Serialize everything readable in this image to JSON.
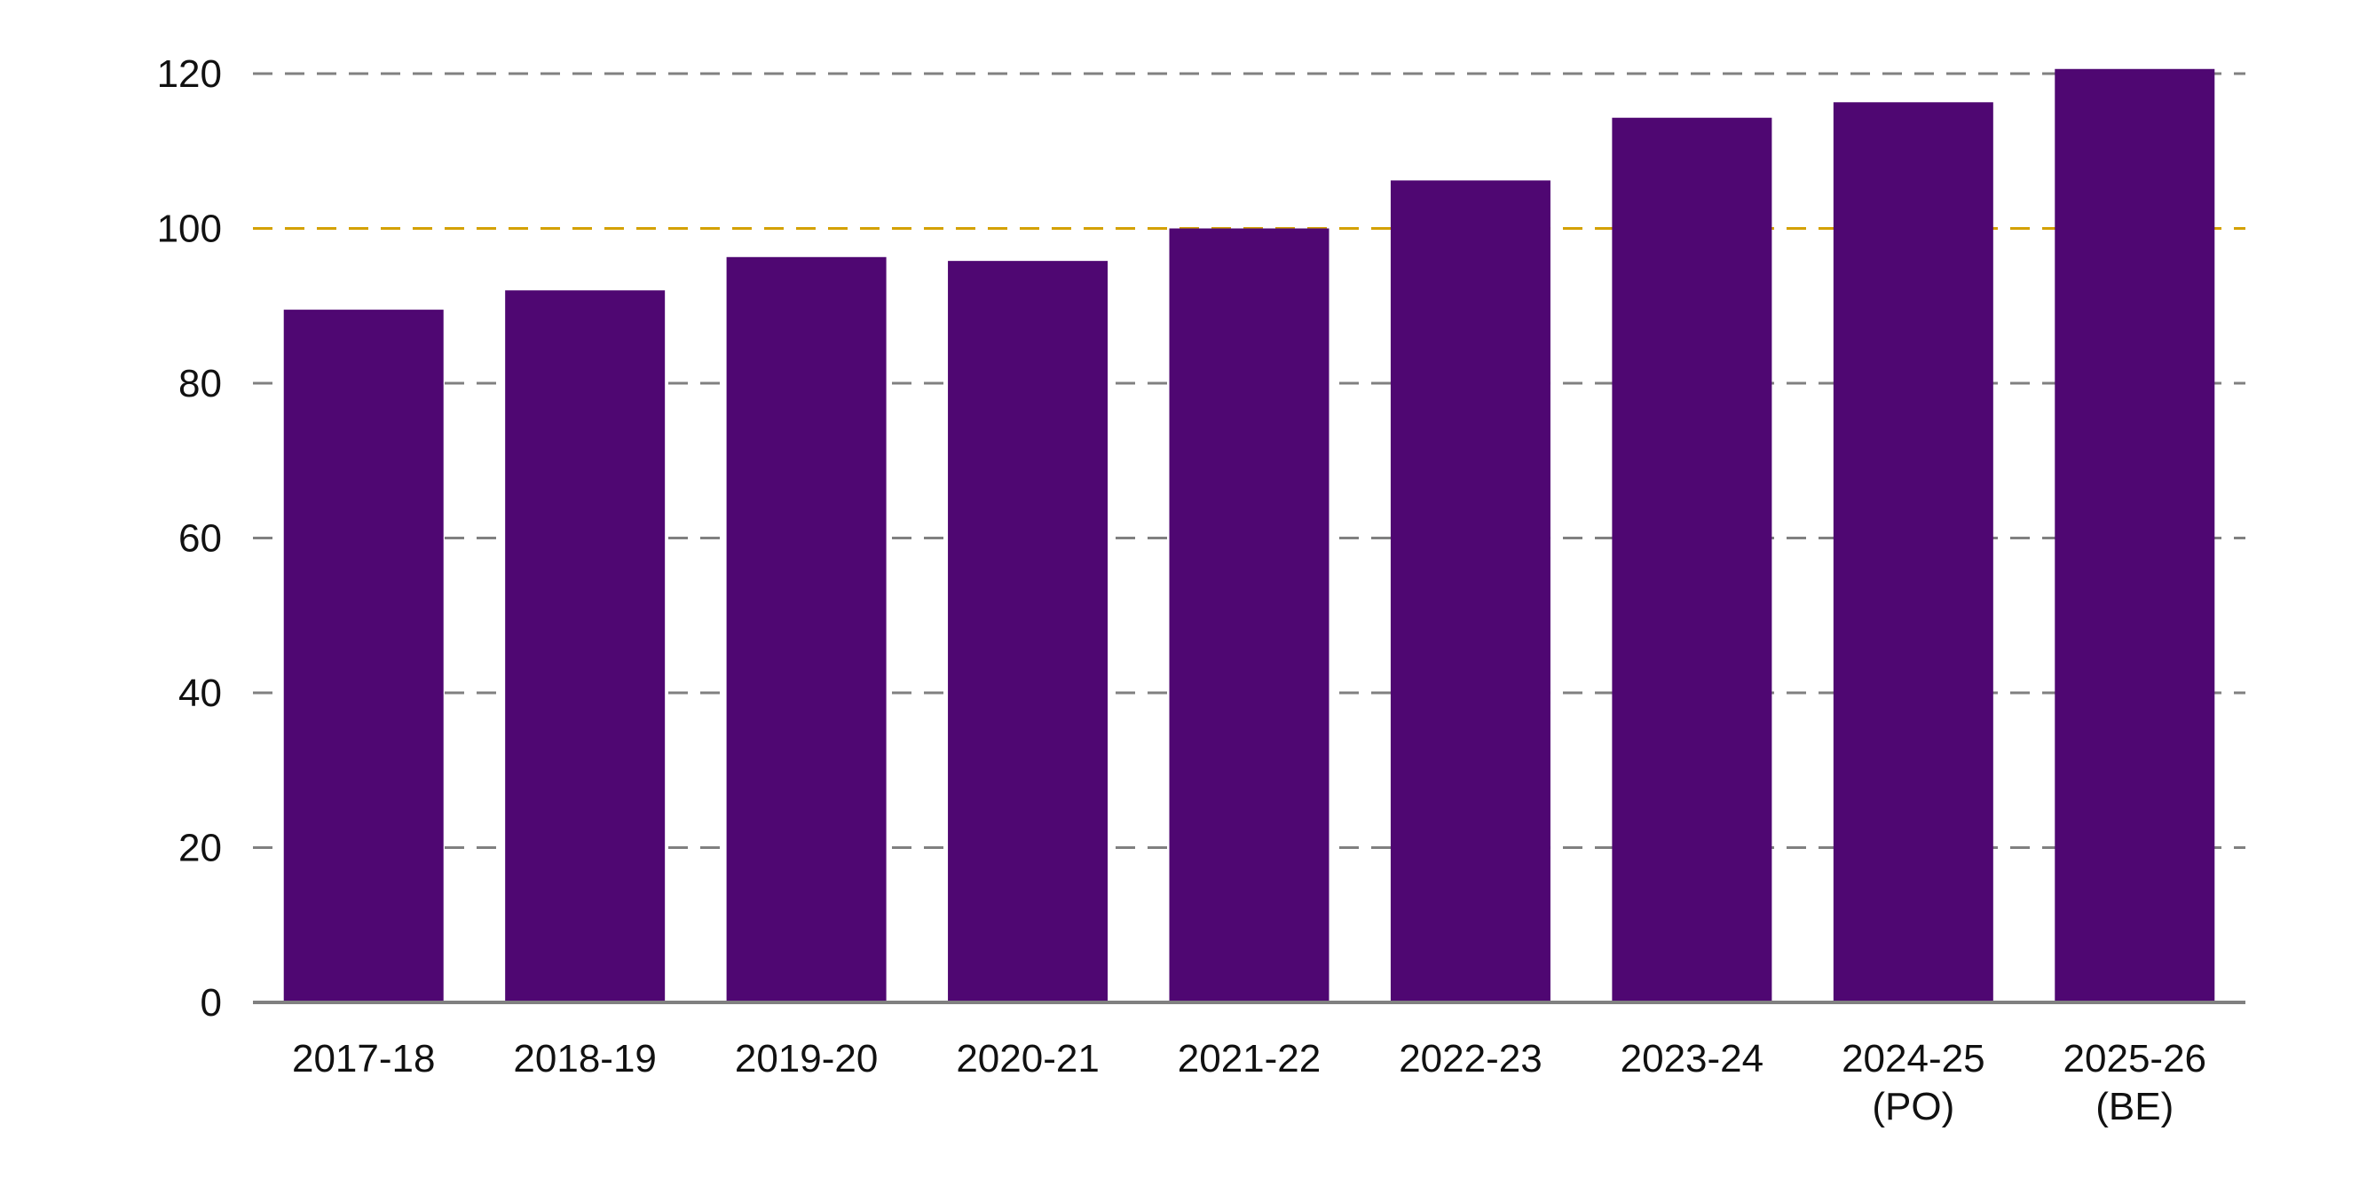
{
  "chart_data": {
    "type": "bar",
    "categories": [
      [
        "2017-18"
      ],
      [
        "2018-19"
      ],
      [
        "2019-20"
      ],
      [
        "2020-21"
      ],
      [
        "2021-22"
      ],
      [
        "2022-23"
      ],
      [
        "2023-24"
      ],
      [
        "2024-25",
        "(PO)"
      ],
      [
        "2025-26",
        "(BE)"
      ]
    ],
    "values": [
      89.5,
      92.0,
      96.3,
      95.8,
      100.0,
      106.2,
      114.3,
      116.3,
      120.6
    ],
    "title": "",
    "xlabel": "",
    "ylabel": "",
    "ylim": [
      0,
      120
    ],
    "yticks": [
      0,
      20,
      40,
      60,
      80,
      100,
      120
    ],
    "reference_line": {
      "value": 100,
      "color": "#d4a000"
    },
    "grid": true,
    "legend": "none",
    "colors": {
      "bar": "#4f0772",
      "grid": "#808080",
      "axis": "#808080",
      "reference": "#d4a000",
      "reference_label": "#c9a000"
    }
  }
}
